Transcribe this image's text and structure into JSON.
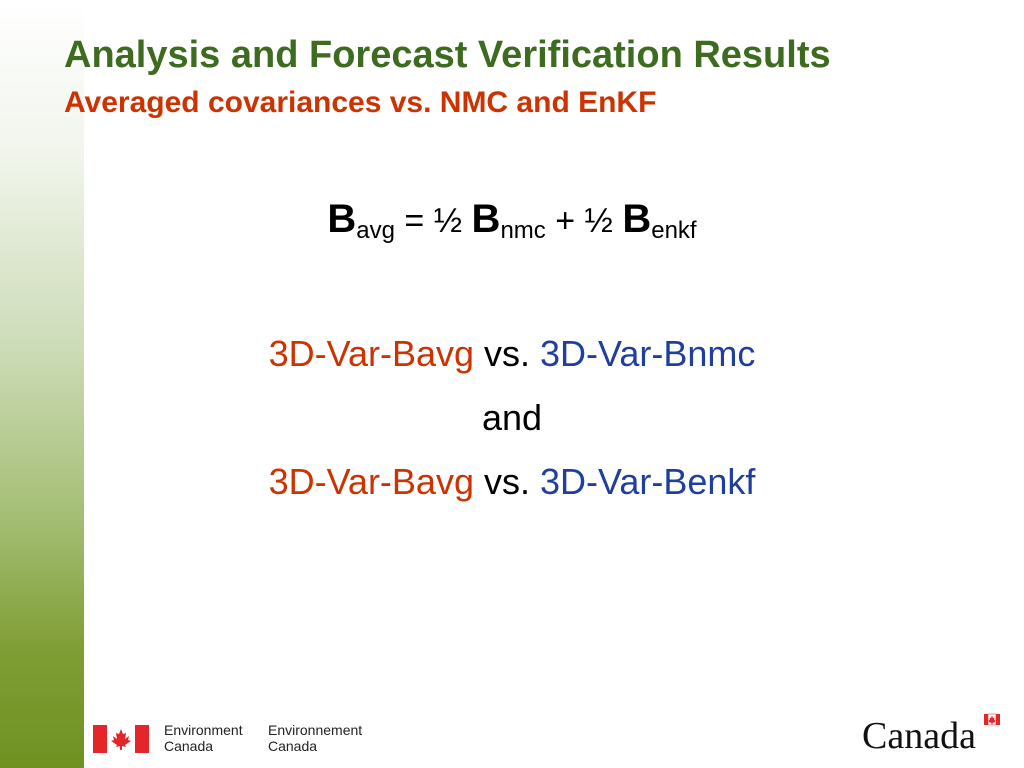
{
  "slide": {
    "title": "Analysis and Forecast Verification Results",
    "subtitle": "Averaged covariances vs. NMC and EnKF"
  },
  "formula": {
    "B1": "B",
    "sub1": "avg",
    "op1": " = ½ ",
    "B2": "B",
    "sub2": "nmc",
    "op2": " + ½ ",
    "B3": "B",
    "sub3": "enkf"
  },
  "comparisons": {
    "line1": {
      "left": "3D-Var-Bavg",
      "vs": " vs. ",
      "right": "3D-Var-Bnmc"
    },
    "connector": "and",
    "line2": {
      "left": "3D-Var-Bavg",
      "vs": " vs. ",
      "right": "3D-Var-Benkf"
    }
  },
  "footer": {
    "dept_en_line1": "Environment",
    "dept_en_line2": "Canada",
    "dept_fr_line1": "Environnement",
    "dept_fr_line2": "Canada",
    "wordmark": "Canada"
  },
  "colors": {
    "title": "#3d6b20",
    "subtitle": "#cc3300",
    "accent_red": "#cc3300",
    "accent_blue": "#1f3f9f",
    "flag_red": "#e4262b"
  },
  "icons": {
    "flag": "canada-flag-icon",
    "wordmark": "canada-wordmark-icon"
  }
}
